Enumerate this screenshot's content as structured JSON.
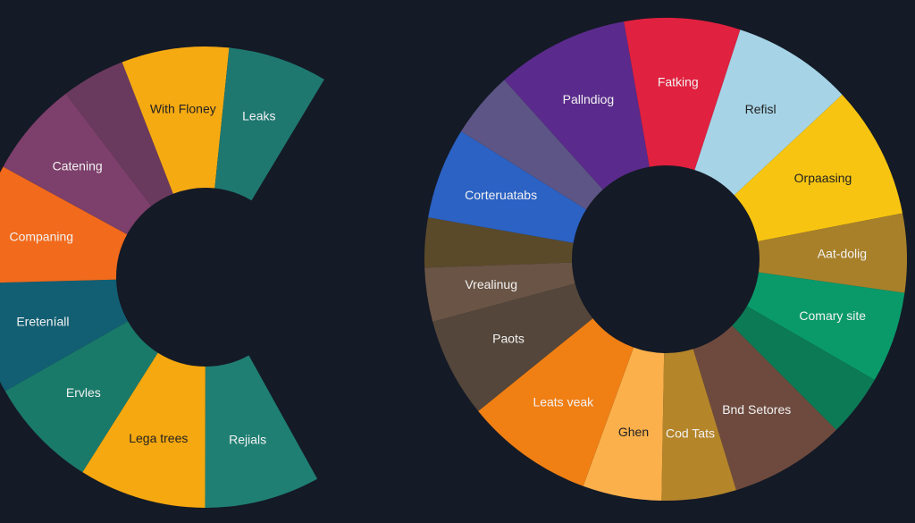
{
  "chart_data": [
    {
      "type": "pie",
      "donut": true,
      "categories": [
        "Rejials",
        "Lega trees",
        "Ervles",
        "Ereteníall",
        "Companing",
        "Catening",
        null,
        "With Floney",
        "Leaks"
      ],
      "values": [
        29,
        32,
        28,
        28,
        30,
        24,
        16,
        27,
        25
      ],
      "colors": [
        "#1f7f73",
        "#f5a80f",
        "#1a7a6a",
        "#125f73",
        "#f26a1b",
        "#7d3f6b",
        "#6a3a5e",
        "#f6aa12",
        "#1f7870"
      ]
    },
    {
      "type": "pie",
      "donut": true,
      "categories": [
        "Fatking",
        "Refisl",
        "Orpaasing",
        "Aat-dolig",
        "Comary site",
        null,
        "Bnd Setores",
        "Cod Tats",
        "Ghen",
        "Leats veak",
        "Paots",
        "Vrealinug",
        null,
        "Corteruatabs",
        null,
        "Pallndiog"
      ],
      "values": [
        28,
        29,
        32,
        19,
        22,
        15,
        28,
        18,
        19,
        31,
        24,
        13,
        12,
        22,
        16,
        32
      ],
      "colors": [
        "#e0213f",
        "#a6d4e6",
        "#f7c511",
        "#a8802a",
        "#0a9a6a",
        "#0c7a55",
        "#6e4a3e",
        "#b5852a",
        "#fbb04b",
        "#f07f14",
        "#54463a",
        "#6a5445",
        "#5b4a2a",
        "#2b62c4",
        "#5c5585",
        "#5a2b8c"
      ]
    }
  ]
}
